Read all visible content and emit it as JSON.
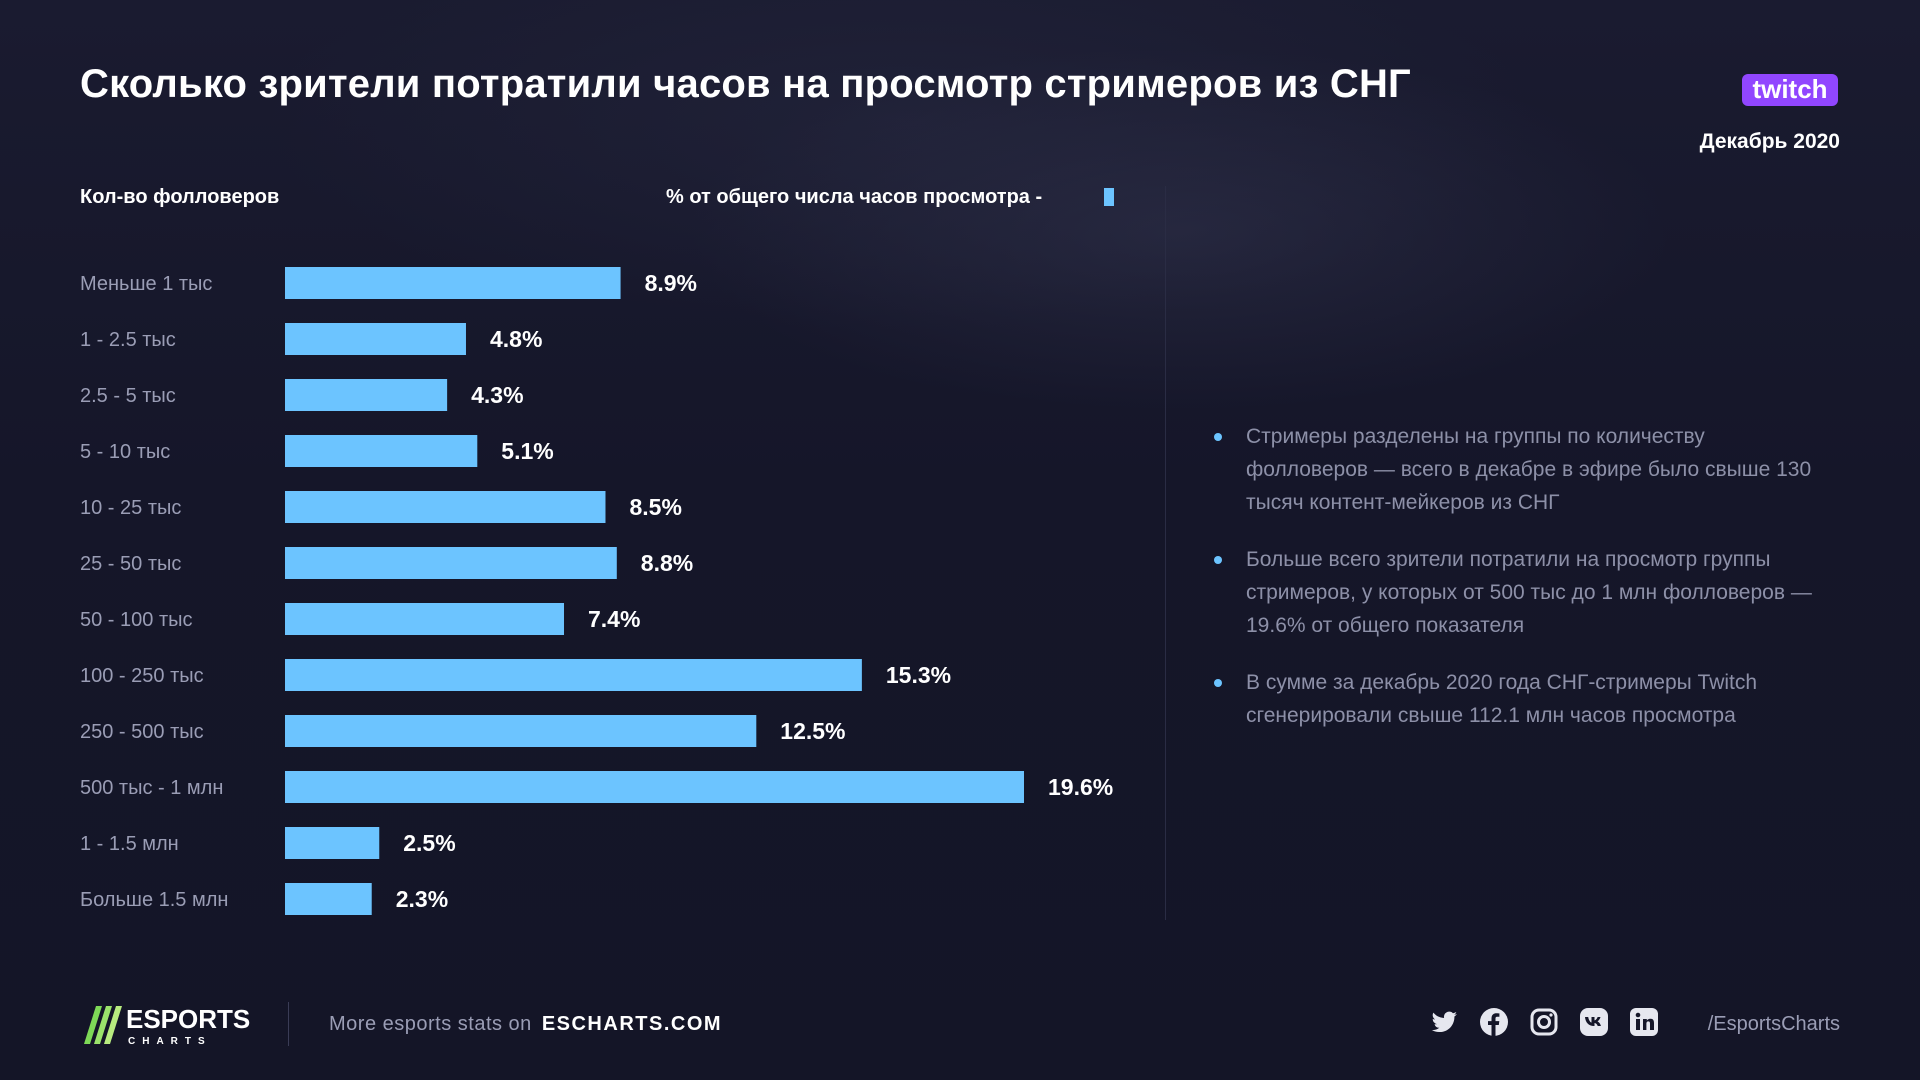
{
  "header": {
    "title": "Сколько зрители потратили часов на просмотр стримеров из СНГ",
    "date": "Декабрь 2020",
    "left_column_label": "Кол-во фолловеров",
    "right_column_label": "% от общего числа часов просмотра  -",
    "brand_logo": "twitch-logo"
  },
  "chart_data": {
    "type": "bar",
    "orientation": "horizontal",
    "categories": [
      "Меньше 1 тыс",
      "1 - 2.5 тыс",
      "2.5 - 5 тыс",
      "5 - 10 тыс",
      "10 - 25 тыс",
      "25 - 50 тыс",
      "50 - 100 тыс",
      "100 - 250 тыс",
      "250 - 500 тыс",
      "500 тыс - 1 млн",
      "1 - 1.5 млн",
      "Больше 1.5 млн"
    ],
    "values": [
      8.9,
      4.8,
      4.3,
      5.1,
      8.5,
      8.8,
      7.4,
      15.3,
      12.5,
      19.6,
      2.5,
      2.3
    ],
    "value_labels": [
      "8.9%",
      "4.8%",
      "4.3%",
      "5.1%",
      "8.5%",
      "8.8%",
      "7.4%",
      "15.3%",
      "12.5%",
      "19.6%",
      "2.5%",
      "2.3%"
    ],
    "bar_color": "#6cc4ff",
    "xlim": [
      0,
      19.6
    ],
    "grid": false
  },
  "notes": [
    "Стримеры разделены на группы по количеству фолловеров — всего в декабре в эфире было свыше 130 тысяч контент-мейкеров из СНГ",
    "Больше всего зрители потратили на просмотр группы стримеров, у которых от 500 тыс до 1 млн фолловеров — 19.6% от общего показателя",
    "В сумме за декабрь 2020 года СНГ-стримеры Twitch сгенерировали свыше 112.1 млн часов просмотра"
  ],
  "footer": {
    "logo_line1": "ESPORTS",
    "logo_line2": "CHARTS",
    "promo_text": "More esports stats on",
    "site": "ESCHARTS.COM",
    "handle": "/EsportsCharts",
    "social_icons": [
      "twitter-icon",
      "facebook-icon",
      "instagram-icon",
      "vk-icon",
      "linkedin-icon"
    ]
  },
  "colors": {
    "background": "#151629",
    "accent": "#6cc4ff",
    "twitch": "#9146ff",
    "logo_green": "#7ed957"
  }
}
